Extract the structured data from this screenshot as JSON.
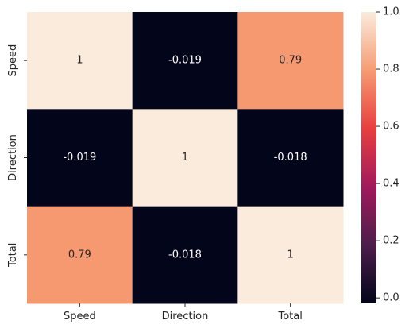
{
  "chart_data": {
    "type": "heatmap",
    "title": "",
    "xlabel": "",
    "ylabel": "",
    "x_categories": [
      "Speed",
      "Direction",
      "Total"
    ],
    "y_categories": [
      "Speed",
      "Direction",
      "Total"
    ],
    "values": [
      [
        1,
        -0.019,
        0.79
      ],
      [
        -0.019,
        1,
        -0.018
      ],
      [
        0.79,
        -0.018,
        1
      ]
    ],
    "cell_labels": [
      [
        "1",
        "-0.019",
        "0.79"
      ],
      [
        "-0.019",
        "1",
        "-0.018"
      ],
      [
        "0.79",
        "-0.018",
        "1"
      ]
    ],
    "colorbar": {
      "range": [
        -0.019,
        1
      ],
      "ticks": [
        0.0,
        0.2,
        0.4,
        0.6,
        0.8,
        1.0
      ],
      "tick_labels": [
        "0.0",
        "0.2",
        "0.4",
        "0.6",
        "0.8",
        "1.0"
      ]
    },
    "colormap": {
      "name": "rocket",
      "stops": [
        "#03051a",
        "#4c1d4b",
        "#a11a5b",
        "#e83f3f",
        "#f69c73",
        "#faebdd"
      ]
    }
  }
}
